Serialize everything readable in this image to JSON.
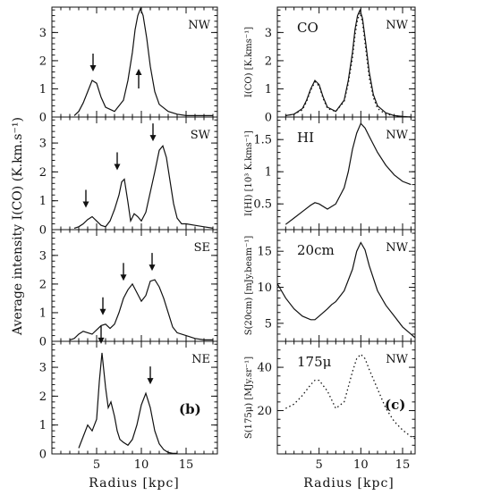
{
  "figure": {
    "left_ylabel": "Average intensity I(CO) (K.km.s⁻¹)",
    "left_xlabel": "Radius [kpc]",
    "right_xlabel": "Radius [kpc]",
    "left_tag": "(b)",
    "right_tag": "(c)"
  },
  "chart_data": [
    {
      "type": "line",
      "panel": "left-1",
      "label": "NW",
      "xlim": [
        0,
        18.5
      ],
      "ylim": [
        0,
        3.9
      ],
      "xticks": [
        5,
        10,
        15
      ],
      "yticks": [
        0,
        1,
        2,
        3
      ],
      "x": [
        2.5,
        3.0,
        3.5,
        4.0,
        4.5,
        5.0,
        5.5,
        6.0,
        7.0,
        8.0,
        8.5,
        9.0,
        9.3,
        9.6,
        9.9,
        10.2,
        10.6,
        11.0,
        11.5,
        12.0,
        13.0,
        14.0,
        15.0,
        16.0,
        17.0,
        18.0
      ],
      "series": [
        {
          "values": [
            0.05,
            0.2,
            0.5,
            0.9,
            1.3,
            1.2,
            0.7,
            0.35,
            0.2,
            0.6,
            1.3,
            2.3,
            3.1,
            3.6,
            3.85,
            3.6,
            2.8,
            1.8,
            0.9,
            0.45,
            0.2,
            0.1,
            0.05,
            0.05,
            0.05,
            0.05
          ]
        }
      ],
      "arrows": [
        {
          "x": 4.6,
          "direction": "down"
        },
        {
          "x": 9.7,
          "direction": "up"
        }
      ]
    },
    {
      "type": "line",
      "panel": "left-2",
      "label": "SW",
      "xlim": [
        0,
        18.5
      ],
      "ylim": [
        0,
        3.9
      ],
      "xticks": [
        5,
        10,
        15
      ],
      "yticks": [
        0,
        1,
        2,
        3
      ],
      "x": [
        2.5,
        3.0,
        3.5,
        4.0,
        4.5,
        5.0,
        5.5,
        6.0,
        6.5,
        7.0,
        7.5,
        7.8,
        8.1,
        8.5,
        8.8,
        9.2,
        9.6,
        10.0,
        10.5,
        11.0,
        11.5,
        12.0,
        12.4,
        12.8,
        13.2,
        13.6,
        14.0,
        14.5,
        15.0,
        16.0,
        17.0,
        18.0
      ],
      "series": [
        {
          "values": [
            0.05,
            0.1,
            0.2,
            0.35,
            0.45,
            0.3,
            0.15,
            0.1,
            0.3,
            0.7,
            1.2,
            1.65,
            1.75,
            0.95,
            0.3,
            0.55,
            0.45,
            0.3,
            0.6,
            1.3,
            2.0,
            2.75,
            2.9,
            2.5,
            1.7,
            0.9,
            0.4,
            0.2,
            0.2,
            0.15,
            0.1,
            0.05
          ]
        }
      ],
      "arrows": [
        {
          "x": 3.8,
          "direction": "down"
        },
        {
          "x": 7.3,
          "direction": "down"
        },
        {
          "x": 11.3,
          "direction": "down"
        }
      ]
    },
    {
      "type": "line",
      "panel": "left-3",
      "label": "SE",
      "xlim": [
        0,
        18.5
      ],
      "ylim": [
        0,
        3.9
      ],
      "xticks": [
        5,
        10,
        15
      ],
      "yticks": [
        0,
        1,
        2,
        3
      ],
      "x": [
        2.0,
        2.5,
        3.0,
        3.5,
        4.0,
        4.5,
        5.0,
        5.5,
        6.0,
        6.5,
        7.0,
        7.5,
        8.0,
        8.5,
        9.0,
        9.5,
        10.0,
        10.5,
        11.0,
        11.5,
        12.0,
        12.5,
        13.0,
        13.5,
        14.0,
        15.0,
        16.0,
        17.0,
        18.0
      ],
      "series": [
        {
          "values": [
            0.05,
            0.1,
            0.25,
            0.35,
            0.3,
            0.25,
            0.4,
            0.55,
            0.6,
            0.45,
            0.6,
            1.0,
            1.5,
            1.8,
            2.0,
            1.7,
            1.4,
            1.6,
            2.1,
            2.15,
            1.9,
            1.5,
            1.0,
            0.5,
            0.3,
            0.2,
            0.1,
            0.05,
            0.05
          ]
        }
      ],
      "arrows": [
        {
          "x": 5.7,
          "direction": "down"
        },
        {
          "x": 8.0,
          "direction": "down"
        },
        {
          "x": 11.2,
          "direction": "down"
        }
      ]
    },
    {
      "type": "line",
      "panel": "left-4",
      "label": "NE",
      "xlim": [
        0,
        18.5
      ],
      "ylim": [
        0,
        3.9
      ],
      "xticks": [
        5,
        10,
        15
      ],
      "yticks": [
        0,
        1,
        2,
        3
      ],
      "x": [
        3.0,
        3.5,
        4.0,
        4.5,
        5.0,
        5.3,
        5.6,
        6.0,
        6.3,
        6.6,
        7.0,
        7.3,
        7.6,
        8.0,
        8.5,
        9.0,
        9.5,
        10.0,
        10.5,
        11.0,
        11.5,
        12.0,
        12.5,
        13.0,
        13.5,
        14.0
      ],
      "series": [
        {
          "values": [
            0.2,
            0.6,
            1.0,
            0.8,
            1.2,
            2.5,
            3.5,
            2.3,
            1.6,
            1.8,
            1.3,
            0.8,
            0.5,
            0.4,
            0.3,
            0.5,
            1.0,
            1.7,
            2.1,
            1.6,
            0.8,
            0.35,
            0.15,
            0.05,
            0.02,
            0.02
          ]
        }
      ],
      "arrows": [
        {
          "x": 5.5,
          "direction": "down"
        },
        {
          "x": 11.0,
          "direction": "down"
        }
      ]
    },
    {
      "type": "line",
      "panel": "right-1",
      "name": "CO",
      "label": "NW",
      "ylabel": "I(CO) [K.kms⁻¹]",
      "xlim": [
        0,
        16.5
      ],
      "ylim": [
        0,
        3.9
      ],
      "xticks": [
        5,
        10,
        15
      ],
      "yticks": [
        0,
        1,
        2,
        3
      ],
      "x": [
        1.0,
        2.0,
        3.0,
        3.5,
        4.0,
        4.5,
        5.0,
        5.5,
        6.0,
        7.0,
        8.0,
        8.5,
        9.0,
        9.3,
        9.6,
        9.9,
        10.2,
        10.6,
        11.0,
        11.5,
        12.0,
        13.0,
        14.0,
        15.0,
        16.0
      ],
      "series": [
        {
          "values": [
            0.05,
            0.1,
            0.3,
            0.6,
            1.0,
            1.3,
            1.15,
            0.7,
            0.35,
            0.2,
            0.6,
            1.3,
            2.3,
            3.1,
            3.6,
            3.8,
            3.5,
            2.6,
            1.6,
            0.8,
            0.4,
            0.15,
            0.05,
            0.02,
            0.0
          ]
        },
        {
          "values": [
            0.05,
            0.1,
            0.25,
            0.55,
            0.95,
            1.25,
            1.1,
            0.65,
            0.3,
            0.2,
            0.55,
            1.2,
            2.1,
            2.9,
            3.45,
            3.7,
            3.35,
            2.4,
            1.4,
            0.7,
            0.3,
            0.1,
            0.05,
            0.02,
            0.0
          ]
        }
      ]
    },
    {
      "type": "line",
      "panel": "right-2",
      "name": "HI",
      "label": "NW",
      "ylabel": "I(HI) [10³ K.kms⁻¹]",
      "xlim": [
        0,
        16.5
      ],
      "ylim": [
        0.1,
        1.85
      ],
      "xticks": [
        5,
        10,
        15
      ],
      "yticks": [
        0.5,
        1,
        1.5
      ],
      "x": [
        1.0,
        2.0,
        3.0,
        4.0,
        4.5,
        5.0,
        6.0,
        7.0,
        8.0,
        8.5,
        9.0,
        9.5,
        10.0,
        10.5,
        11.0,
        12.0,
        13.0,
        14.0,
        15.0,
        16.0
      ],
      "series": [
        {
          "values": [
            0.18,
            0.28,
            0.38,
            0.48,
            0.52,
            0.5,
            0.42,
            0.5,
            0.75,
            1.0,
            1.35,
            1.6,
            1.75,
            1.68,
            1.55,
            1.3,
            1.1,
            0.95,
            0.85,
            0.8
          ]
        }
      ]
    },
    {
      "type": "line",
      "panel": "right-3",
      "name": "20cm",
      "label": "NW",
      "ylabel": "S(20cm) [mJy.beam⁻¹]",
      "xlim": [
        0,
        16.5
      ],
      "ylim": [
        2.5,
        18
      ],
      "xticks": [
        5,
        10,
        15
      ],
      "yticks": [
        5,
        10,
        15
      ],
      "x": [
        0.0,
        1.0,
        2.0,
        3.0,
        4.0,
        4.5,
        5.0,
        6.0,
        6.5,
        7.0,
        8.0,
        9.0,
        9.5,
        10.0,
        10.5,
        11.0,
        12.0,
        13.0,
        14.0,
        15.0,
        16.0,
        16.5
      ],
      "series": [
        {
          "values": [
            10.5,
            8.5,
            7.0,
            6.0,
            5.5,
            5.5,
            6.0,
            7.0,
            7.6,
            8.0,
            9.5,
            12.5,
            15.0,
            16.2,
            15.2,
            13.0,
            9.5,
            7.5,
            6.0,
            4.5,
            3.5,
            3.0
          ]
        }
      ]
    },
    {
      "type": "line",
      "panel": "right-4",
      "name": "175μ",
      "label": "NW",
      "ylabel": "S(175μ) [MJy.sr⁻¹]",
      "xlim": [
        0,
        16.5
      ],
      "ylim": [
        0,
        52
      ],
      "xticks": [
        5,
        10,
        15
      ],
      "yticks": [
        20,
        40
      ],
      "x": [
        1.0,
        2.0,
        3.0,
        4.0,
        4.5,
        5.0,
        6.0,
        7.0,
        8.0,
        9.0,
        9.5,
        10.0,
        10.5,
        11.0,
        12.0,
        13.0,
        14.0,
        15.0,
        16.0,
        16.5
      ],
      "series": [
        {
          "values": [
            21,
            23,
            27,
            32,
            34,
            34,
            29,
            21,
            24,
            38,
            44,
            46,
            44,
            39,
            30,
            21,
            15,
            11,
            8,
            7
          ]
        }
      ]
    }
  ]
}
